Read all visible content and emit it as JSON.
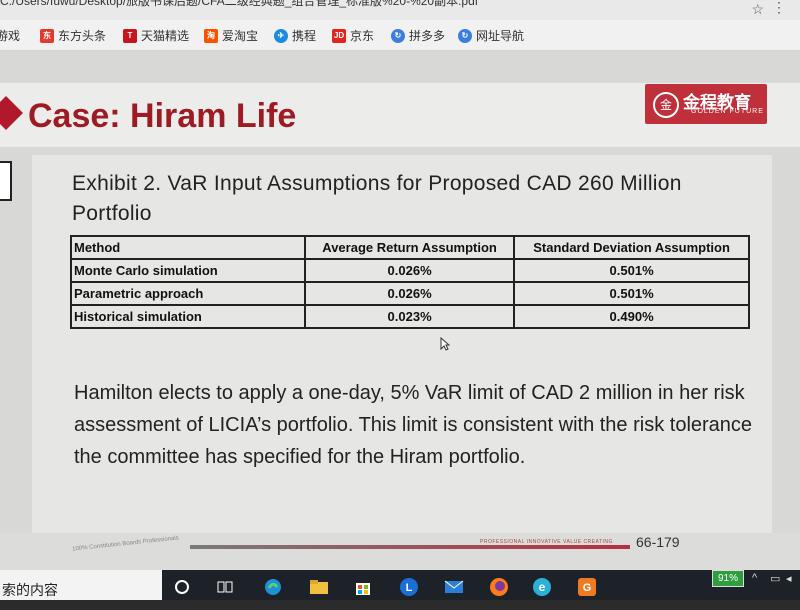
{
  "browser": {
    "url": "C:/Users/fuwu/Desktop/旅版书课后题/CFA二级经典题_组合管理_标准版%20-%20副本.pdf",
    "bookmarks": [
      {
        "label": "游戏",
        "icon": "game-icon",
        "color": "#e0e0e0"
      },
      {
        "label": "东方头条",
        "icon": "dongfang-icon",
        "color": "#e23b2e"
      },
      {
        "label": "天猫精选",
        "icon": "tmall-icon",
        "color": "#c8161d"
      },
      {
        "label": "爱淘宝",
        "icon": "taobao-icon",
        "color": "#ff5000"
      },
      {
        "label": "携程",
        "icon": "ctrip-icon",
        "color": "#1a8bde"
      },
      {
        "label": "京东",
        "icon": "jd-icon",
        "color": "#e1251b"
      },
      {
        "label": "拼多多",
        "icon": "pdd-icon",
        "color": "#3b7ee0"
      },
      {
        "label": "网址导航",
        "icon": "nav-icon",
        "color": "#3b7ee0"
      }
    ]
  },
  "slide": {
    "title": "Case: Hiram Life",
    "logo_cn": "金程教育",
    "logo_en": "GOLDEN FUTURE",
    "exhibit_title": "Exhibit 2.  VaR Input Assumptions for Proposed CAD 260 Million Portfolio",
    "table": {
      "headers": [
        "Method",
        "Average Return Assumption",
        "Standard Deviation Assumption"
      ],
      "rows": [
        [
          "Monte Carlo simulation",
          "0.026%",
          "0.501%"
        ],
        [
          "Parametric approach",
          "0.026%",
          "0.501%"
        ],
        [
          "Historical simulation",
          "0.023%",
          "0.490%"
        ]
      ]
    },
    "paragraph": "Hamilton elects to apply a one-day, 5% VaR limit of CAD 2 million in her risk assessment of LICIA’s portfolio. This limit is consistent with the risk tolerance the committee has specified for the Hiram portfolio.",
    "footer_left": "100% Constitution Boards Professionals",
    "footer_right": "PROFESSIONAL INNOVATIVE VALUE CREATING",
    "page_number": "66-179"
  },
  "taskbar": {
    "search_text": "索的内容",
    "battery": "91%"
  },
  "colors": {
    "title_red": "#9e1b24",
    "logo_red": "#c0303a",
    "taskbar": "#1d2229"
  }
}
